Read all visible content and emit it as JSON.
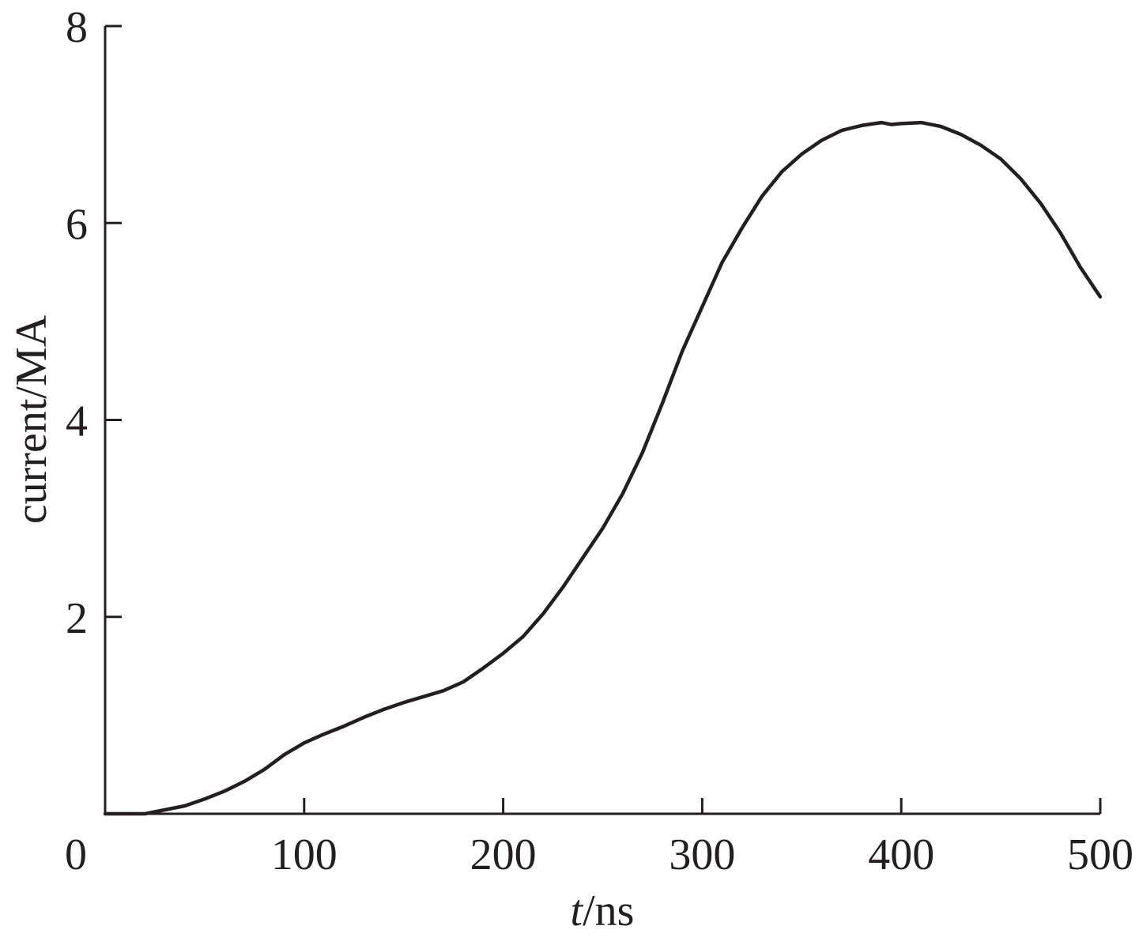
{
  "chart_data": {
    "type": "line",
    "title": "",
    "xlabel_italic": "t",
    "xlabel_rest": "/ns",
    "ylabel": "current/MA",
    "xlim": [
      0,
      500
    ],
    "ylim": [
      0,
      8
    ],
    "xticks": [
      0,
      100,
      200,
      300,
      400,
      500
    ],
    "xtick_labels": [
      "0",
      "100",
      "200",
      "300",
      "400",
      "500"
    ],
    "yticks": [
      2,
      4,
      6,
      8
    ],
    "ytick_labels": [
      "2",
      "4",
      "6",
      "8"
    ],
    "grid": false,
    "colors": {
      "line": "#231f20",
      "axis": "#231f20"
    },
    "series": [
      {
        "x": [
          0,
          20,
          30,
          40,
          50,
          60,
          70,
          80,
          90,
          100,
          110,
          120,
          130,
          140,
          150,
          160,
          170,
          180,
          190,
          200,
          210,
          220,
          230,
          240,
          250,
          260,
          270,
          280,
          290,
          300,
          310,
          320,
          330,
          340,
          350,
          360,
          370,
          380,
          390,
          395,
          400,
          410,
          420,
          430,
          440,
          450,
          460,
          470,
          480,
          490,
          500
        ],
        "y": [
          0,
          0,
          0.04,
          0.08,
          0.15,
          0.23,
          0.33,
          0.45,
          0.6,
          0.72,
          0.81,
          0.89,
          0.98,
          1.06,
          1.13,
          1.19,
          1.25,
          1.34,
          1.48,
          1.63,
          1.8,
          2.03,
          2.3,
          2.6,
          2.9,
          3.25,
          3.67,
          4.17,
          4.7,
          5.15,
          5.6,
          5.95,
          6.27,
          6.52,
          6.7,
          6.84,
          6.94,
          6.99,
          7.02,
          7.0,
          7.01,
          7.02,
          6.98,
          6.9,
          6.79,
          6.65,
          6.45,
          6.2,
          5.9,
          5.55,
          5.25
        ]
      }
    ]
  }
}
